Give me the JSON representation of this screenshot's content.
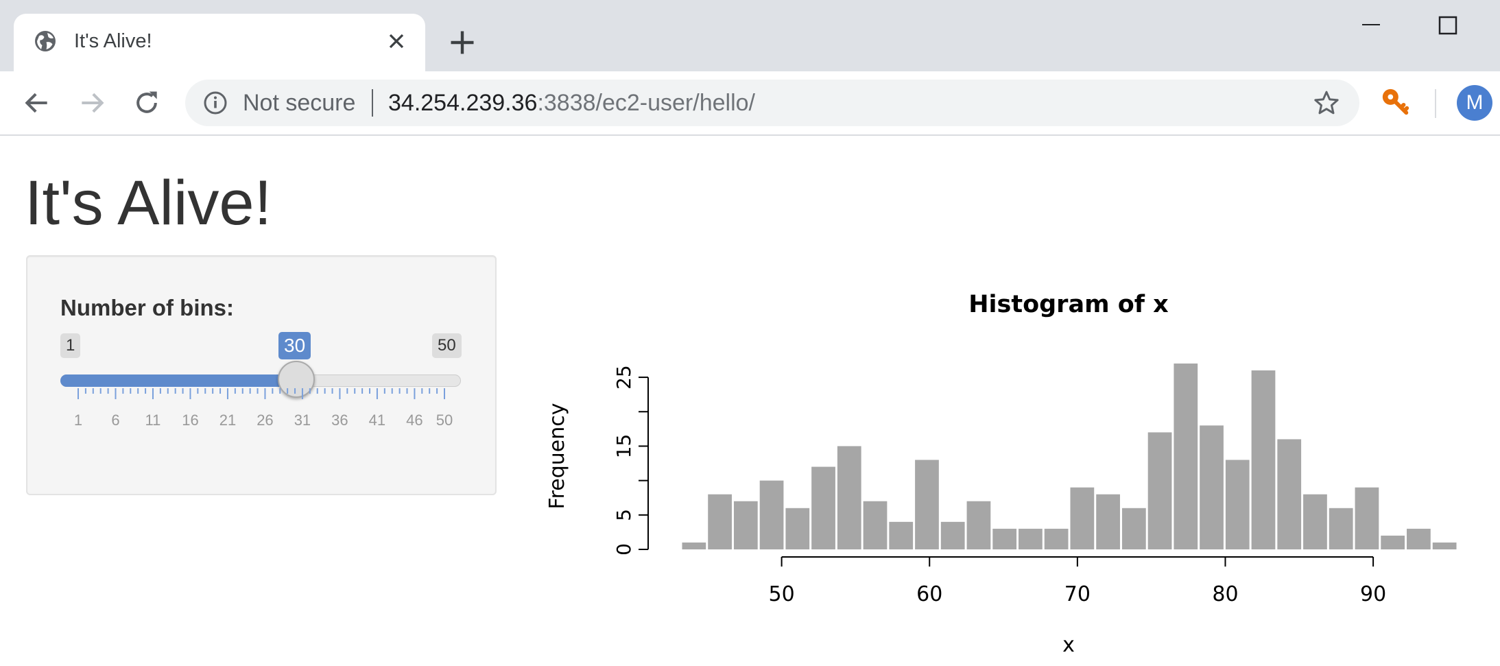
{
  "browser": {
    "tab_title": "It's Alive!",
    "omnibox": {
      "security_label": "Not secure",
      "url_host": "34.254.239.36",
      "url_rest": ":3838/ec2-user/hello/"
    },
    "avatar_letter": "M"
  },
  "page": {
    "title": "It's Alive!",
    "slider": {
      "label": "Number of bins:",
      "min": 1,
      "max": 50,
      "value": 30,
      "min_label": "1",
      "max_label": "50",
      "value_label": "30",
      "tick_labels": [
        "1",
        "6",
        "11",
        "16",
        "21",
        "26",
        "31",
        "36",
        "41",
        "46",
        "50"
      ]
    }
  },
  "chart_data": {
    "type": "bar",
    "title": "Histogram of x",
    "xlabel": "x",
    "ylabel": "Frequency",
    "bin_width": 1.75,
    "x": [
      43.2,
      44.95,
      46.7,
      48.45,
      50.2,
      51.95,
      53.7,
      55.45,
      57.2,
      58.95,
      60.7,
      62.45,
      64.2,
      65.95,
      67.7,
      69.45,
      71.2,
      72.95,
      74.7,
      76.45,
      78.2,
      79.95,
      81.7,
      83.45,
      85.2,
      86.95,
      88.7,
      90.45,
      92.2,
      93.95
    ],
    "values": [
      1,
      8,
      7,
      10,
      6,
      12,
      15,
      7,
      4,
      13,
      4,
      7,
      3,
      3,
      3,
      9,
      8,
      6,
      17,
      27,
      18,
      13,
      26,
      16,
      8,
      6,
      9,
      2,
      3,
      1
    ],
    "x_ticks": [
      50,
      60,
      70,
      80,
      90
    ],
    "x_tick_labels": [
      "50",
      "60",
      "70",
      "80",
      "90"
    ],
    "y_ticks": [
      0,
      5,
      10,
      15,
      20,
      25
    ],
    "y_tick_labels": [
      "0",
      "5",
      "15",
      "25"
    ],
    "y_labeled_ticks": [
      0,
      5,
      15,
      25
    ],
    "xlim": [
      43.2,
      95.7
    ],
    "ylim": [
      0,
      27
    ],
    "bar_color": "#a6a6a6",
    "grid": false
  }
}
